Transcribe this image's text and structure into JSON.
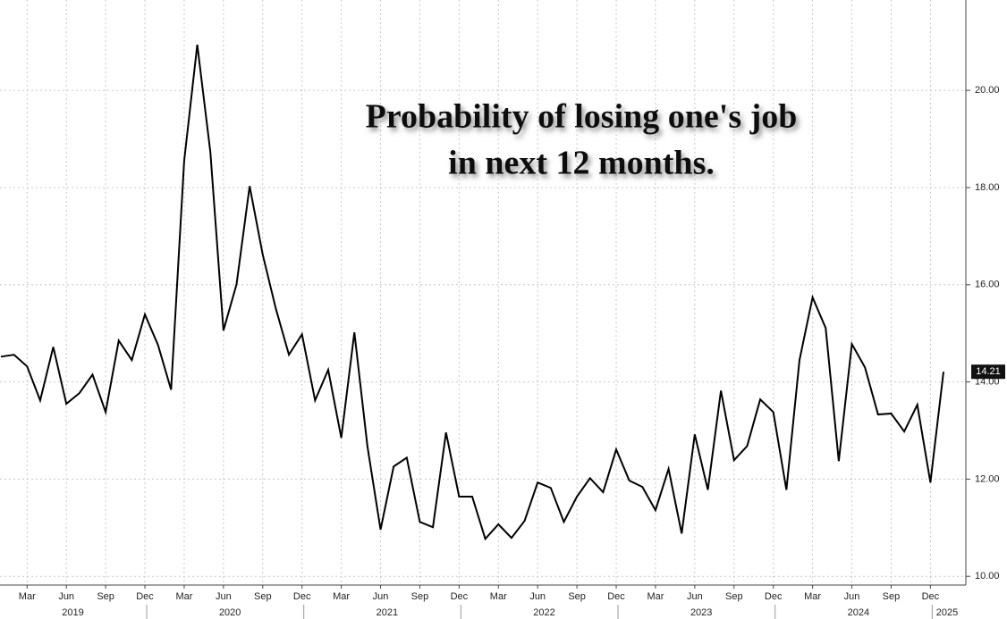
{
  "chart_data": {
    "type": "line",
    "title": [
      "Probability of losing one's job",
      "in next 12 months."
    ],
    "x": [
      "2019-01",
      "2019-02",
      "2019-03",
      "2019-04",
      "2019-05",
      "2019-06",
      "2019-07",
      "2019-08",
      "2019-09",
      "2019-10",
      "2019-11",
      "2019-12",
      "2020-01",
      "2020-02",
      "2020-03",
      "2020-04",
      "2020-05",
      "2020-06",
      "2020-07",
      "2020-08",
      "2020-09",
      "2020-10",
      "2020-11",
      "2020-12",
      "2021-01",
      "2021-02",
      "2021-03",
      "2021-04",
      "2021-05",
      "2021-06",
      "2021-07",
      "2021-08",
      "2021-09",
      "2021-10",
      "2021-11",
      "2021-12",
      "2022-01",
      "2022-02",
      "2022-03",
      "2022-04",
      "2022-05",
      "2022-06",
      "2022-07",
      "2022-08",
      "2022-09",
      "2022-10",
      "2022-11",
      "2022-12",
      "2023-01",
      "2023-02",
      "2023-03",
      "2023-04",
      "2023-05",
      "2023-06",
      "2023-07",
      "2023-08",
      "2023-09",
      "2023-10",
      "2023-11",
      "2023-12",
      "2024-01",
      "2024-02",
      "2024-03",
      "2024-04",
      "2024-05",
      "2024-06",
      "2024-07",
      "2024-08",
      "2024-09",
      "2024-10",
      "2024-11",
      "2024-12",
      "2025-01"
    ],
    "values": [
      14.52,
      14.56,
      14.32,
      13.62,
      14.72,
      13.55,
      13.77,
      14.15,
      13.38,
      14.85,
      14.45,
      15.39,
      14.76,
      13.84,
      18.55,
      20.94,
      18.73,
      15.06,
      16.01,
      18.03,
      16.62,
      15.51,
      14.56,
      14.98,
      13.62,
      14.25,
      12.85,
      15.02,
      12.67,
      10.96,
      12.26,
      12.44,
      11.12,
      11.01,
      12.96,
      11.64,
      11.64,
      10.77,
      11.07,
      10.79,
      11.14,
      11.93,
      11.82,
      11.12,
      11.64,
      12.02,
      11.73,
      12.61,
      11.97,
      11.84,
      11.36,
      12.21,
      10.88,
      12.92,
      11.78,
      13.82,
      12.39,
      12.68,
      13.64,
      13.38,
      11.78,
      14.45,
      15.74,
      15.11,
      12.37,
      14.78,
      14.3,
      13.33,
      13.35,
      12.98,
      13.53,
      11.93,
      14.21
    ],
    "value_labels": [
      null,
      null,
      null,
      null,
      null,
      null,
      null,
      null,
      null,
      null,
      null,
      null,
      null,
      null,
      null,
      null,
      null,
      null,
      null,
      null,
      null,
      null,
      null,
      null,
      null,
      null,
      null,
      null,
      null,
      null,
      null,
      null,
      null,
      null,
      null,
      null,
      null,
      null,
      null,
      null,
      null,
      null,
      null,
      null,
      null,
      null,
      null,
      null,
      null,
      null,
      null,
      null,
      null,
      null,
      null,
      null,
      null,
      null,
      null,
      null,
      null,
      null,
      null,
      null,
      null,
      null,
      null,
      null,
      null,
      null,
      null,
      null,
      "14.21"
    ],
    "color": "#000000",
    "ylim": [
      9.82,
      21.86
    ],
    "yticks": [
      {
        "value": 10,
        "label": "10.00"
      },
      {
        "value": 12,
        "label": "12.00"
      },
      {
        "value": 14,
        "label": "14.00"
      },
      {
        "value": 16,
        "label": "16.00"
      },
      {
        "value": 18,
        "label": "18.00"
      },
      {
        "value": 20,
        "label": "20.00"
      }
    ],
    "xticks": [
      {
        "value": "2019-03",
        "label": "Mar"
      },
      {
        "value": "2019-06",
        "label": "Jun"
      },
      {
        "value": "2019-09",
        "label": "Sep"
      },
      {
        "value": "2019-12",
        "label": "Dec"
      },
      {
        "value": "2020-03",
        "label": "Mar"
      },
      {
        "value": "2020-06",
        "label": "Jun"
      },
      {
        "value": "2020-09",
        "label": "Sep"
      },
      {
        "value": "2020-12",
        "label": "Dec"
      },
      {
        "value": "2021-03",
        "label": "Mar"
      },
      {
        "value": "2021-06",
        "label": "Jun"
      },
      {
        "value": "2021-09",
        "label": "Sep"
      },
      {
        "value": "2021-12",
        "label": "Dec"
      },
      {
        "value": "2022-03",
        "label": "Mar"
      },
      {
        "value": "2022-06",
        "label": "Jun"
      },
      {
        "value": "2022-09",
        "label": "Sep"
      },
      {
        "value": "2022-12",
        "label": "Dec"
      },
      {
        "value": "2023-03",
        "label": "Mar"
      },
      {
        "value": "2023-06",
        "label": "Jun"
      },
      {
        "value": "2023-09",
        "label": "Sep"
      },
      {
        "value": "2023-12",
        "label": "Dec"
      },
      {
        "value": "2024-03",
        "label": "Mar"
      },
      {
        "value": "2024-06",
        "label": "Jun"
      },
      {
        "value": "2024-09",
        "label": "Sep"
      },
      {
        "value": "2024-12",
        "label": "Dec"
      }
    ],
    "year_ticks": [
      2019,
      2020,
      2021,
      2022,
      2023,
      2024,
      2025
    ],
    "grid": true
  }
}
